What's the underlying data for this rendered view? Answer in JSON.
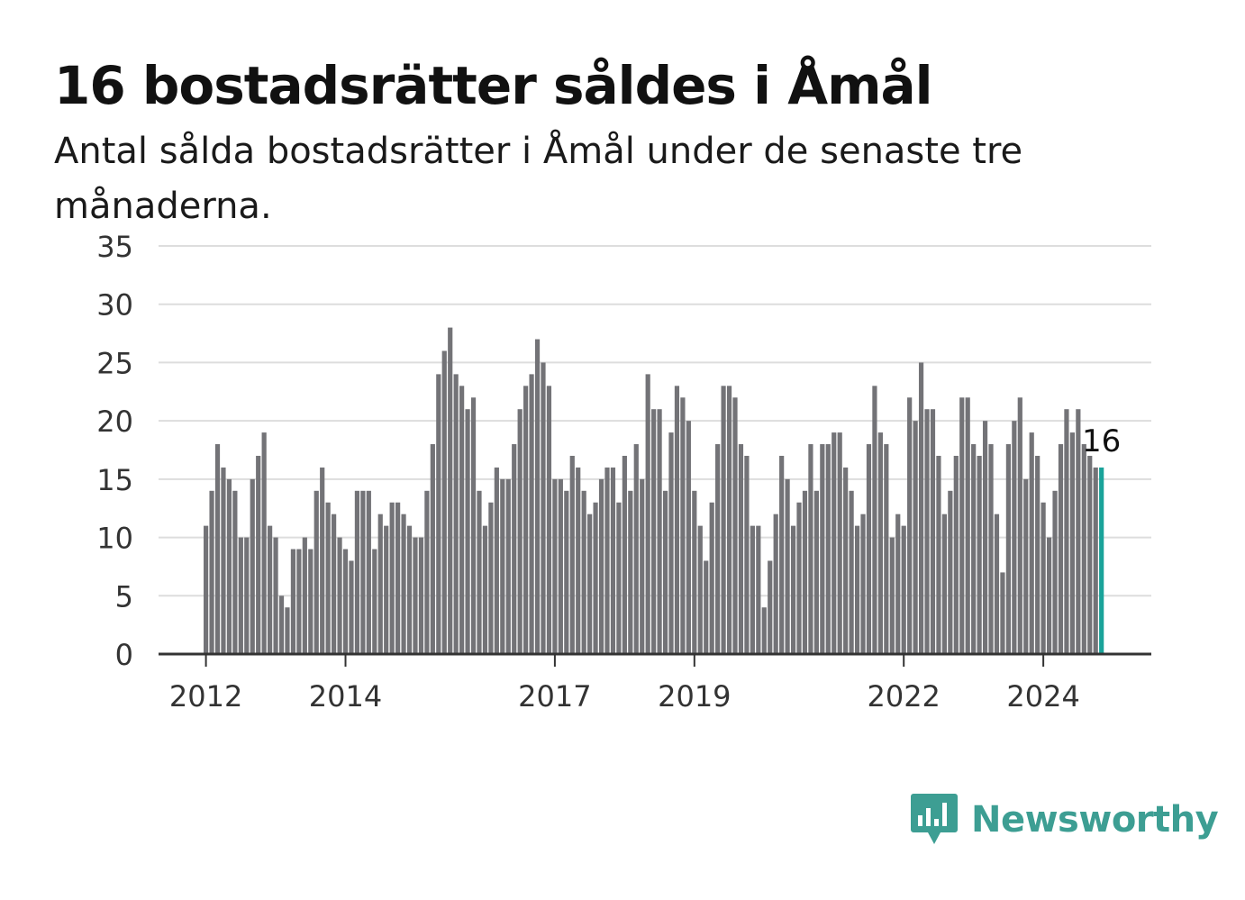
{
  "title": "16 bostadsrätter såldes i Åmål",
  "subtitle": "Antal sålda bostadsrätter i Åmål under de senaste tre månaderna.",
  "brand": {
    "name": "Newsworthy"
  },
  "colors": {
    "bar": "#737377",
    "highlight": "#1aa39a",
    "grid": "#dddddd",
    "axis": "#333333",
    "brand": "#3d9e93"
  },
  "chart_data": {
    "type": "bar",
    "title": "16 bostadsrätter såldes i Åmål",
    "xlabel": "",
    "ylabel": "",
    "ylim": [
      0,
      35
    ],
    "yticks": [
      0,
      5,
      10,
      15,
      20,
      25,
      30,
      35
    ],
    "xticks": [
      {
        "label": "2012",
        "index": 0
      },
      {
        "label": "2014",
        "index": 24
      },
      {
        "label": "2017",
        "index": 60
      },
      {
        "label": "2019",
        "index": 84
      },
      {
        "label": "2022",
        "index": 120
      },
      {
        "label": "2024",
        "index": 144
      }
    ],
    "grid": true,
    "last_value_label": "16",
    "values": [
      11,
      14,
      18,
      16,
      15,
      14,
      10,
      10,
      15,
      17,
      19,
      11,
      10,
      5,
      4,
      9,
      9,
      10,
      9,
      14,
      16,
      13,
      12,
      10,
      9,
      8,
      14,
      14,
      14,
      9,
      12,
      11,
      13,
      13,
      12,
      11,
      10,
      10,
      14,
      18,
      24,
      26,
      28,
      24,
      23,
      21,
      22,
      14,
      11,
      13,
      16,
      15,
      15,
      18,
      21,
      23,
      24,
      27,
      25,
      23,
      15,
      15,
      14,
      17,
      16,
      14,
      12,
      13,
      15,
      16,
      16,
      13,
      17,
      14,
      18,
      15,
      24,
      21,
      21,
      14,
      19,
      23,
      22,
      20,
      14,
      11,
      8,
      13,
      18,
      23,
      23,
      22,
      18,
      17,
      11,
      11,
      4,
      8,
      12,
      17,
      15,
      11,
      13,
      14,
      18,
      14,
      18,
      18,
      19,
      19,
      16,
      14,
      11,
      12,
      18,
      23,
      19,
      18,
      10,
      12,
      11,
      22,
      20,
      25,
      21,
      21,
      17,
      12,
      14,
      17,
      22,
      22,
      18,
      17,
      20,
      18,
      12,
      7,
      18,
      20,
      22,
      15,
      19,
      17,
      13,
      10,
      14,
      18,
      21,
      19,
      21,
      18,
      17,
      16,
      16
    ]
  }
}
